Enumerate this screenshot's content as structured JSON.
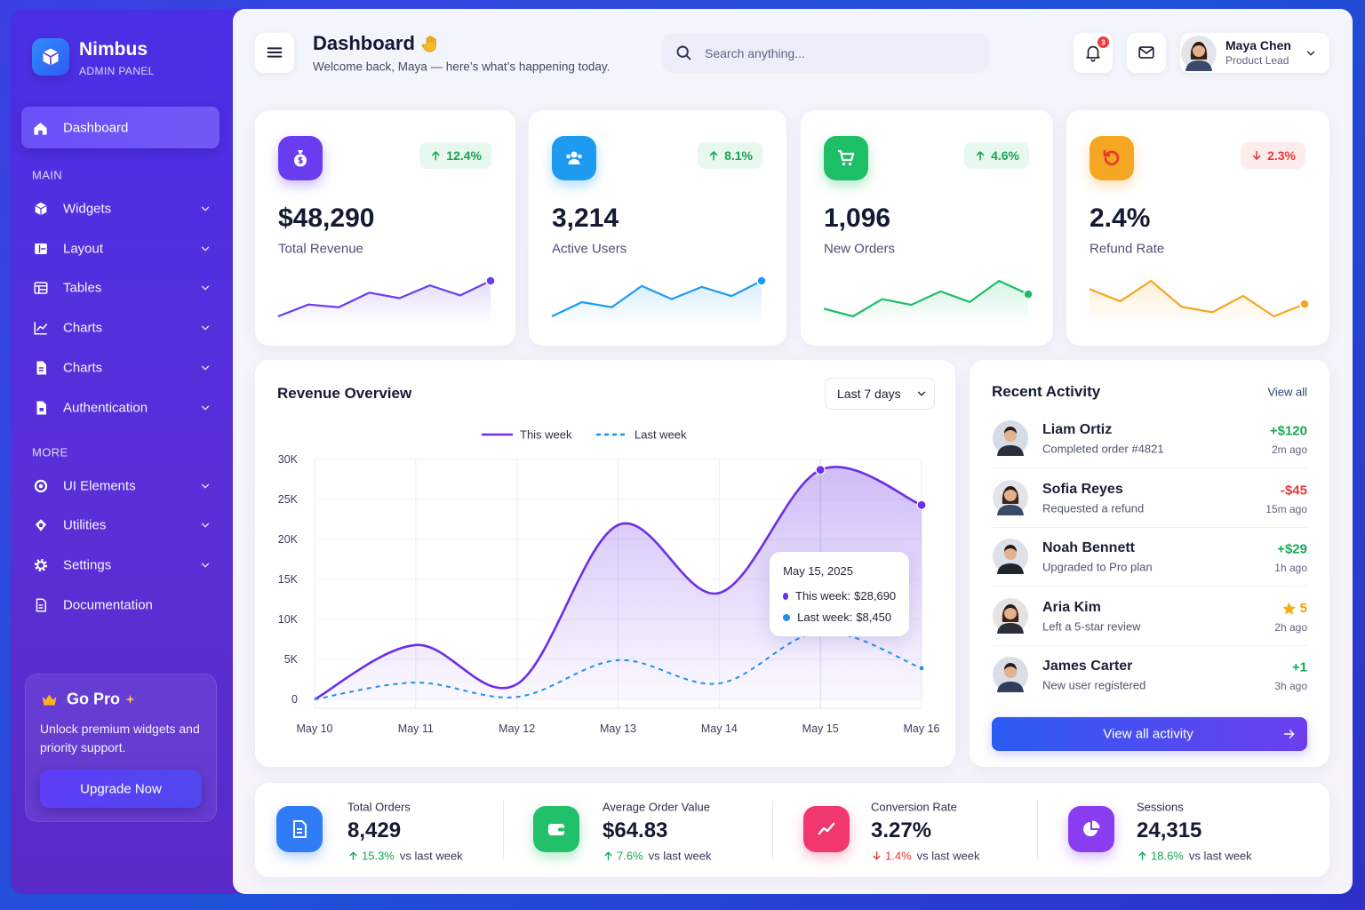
{
  "brand": {
    "name": "Nimbus",
    "tagline": "ADMIN PANEL"
  },
  "nav": {
    "active": "Dashboard",
    "sections": [
      {
        "title": "MAIN",
        "items": [
          {
            "label": "Widgets",
            "submenu": true
          },
          {
            "label": "Layout",
            "submenu": true
          },
          {
            "label": "Tables",
            "submenu": true
          },
          {
            "label": "Charts",
            "submenu": true
          },
          {
            "label": "Charts",
            "submenu": true
          },
          {
            "label": "Authentication",
            "submenu": true
          }
        ]
      },
      {
        "title": "MORE",
        "items": [
          {
            "label": "UI Elements",
            "submenu": true
          },
          {
            "label": "Utilities",
            "submenu": true
          },
          {
            "label": "Settings",
            "submenu": true
          },
          {
            "label": "Documentation",
            "submenu": false
          }
        ]
      }
    ]
  },
  "promo": {
    "title": "Go Pro",
    "text": "Unlock premium widgets and priority support.",
    "button": "Upgrade Now"
  },
  "header": {
    "title": "Dashboard",
    "subtitle": "Welcome back, Maya — here’s what’s happening today.",
    "search_placeholder": "Search anything...",
    "notifications": "3",
    "user": {
      "name": "Maya Chen",
      "role": "Product Lead"
    }
  },
  "kpis": [
    {
      "value": "$48,290",
      "label": "Total Revenue",
      "change": "12.4%",
      "direction": "up",
      "color": "#6a3cf0",
      "trend": [
        4,
        17,
        14,
        30,
        24,
        38,
        27,
        43
      ]
    },
    {
      "value": "3,214",
      "label": "Active Users",
      "change": "8.1%",
      "direction": "up",
      "color": "#1e9bf0",
      "trend": [
        4,
        18,
        13,
        34,
        21,
        33,
        24,
        39
      ]
    },
    {
      "value": "1,096",
      "label": "New Orders",
      "change": "4.6%",
      "direction": "up",
      "color": "#1cbf66",
      "trend": [
        15,
        7,
        25,
        19,
        33,
        22,
        44,
        30
      ]
    },
    {
      "value": "2.4%",
      "label": "Refund Rate",
      "change": "2.3%",
      "direction": "down",
      "color": "#f5a623",
      "trend": [
        33,
        24,
        39,
        20,
        16,
        28,
        13,
        22
      ]
    }
  ],
  "chart_data": {
    "type": "line",
    "title": "Revenue Overview",
    "range_selector": "Last 7 days",
    "categories": [
      "May 10",
      "May 11",
      "May 12",
      "May 13",
      "May 14",
      "May 15",
      "May 16"
    ],
    "series": [
      {
        "name": "This week",
        "color": "#6d2ee8",
        "style": "solid",
        "area": true,
        "values": [
          0,
          6800,
          1900,
          21800,
          13300,
          28690,
          24300
        ],
        "value_labels": [
          null,
          null,
          null,
          null,
          null,
          "$28,690",
          null
        ]
      },
      {
        "name": "Last week",
        "color": "#1e90f0",
        "style": "dashed",
        "area": false,
        "values": [
          0,
          2100,
          300,
          4900,
          2000,
          8450,
          3900
        ],
        "value_labels": [
          null,
          null,
          null,
          null,
          null,
          "$8,450",
          null
        ]
      }
    ],
    "ylim": [
      0,
      30000
    ],
    "yticks": [
      0,
      {
        "value": 5000,
        "label": "5K"
      },
      {
        "value": 10000,
        "label": "10K"
      },
      {
        "value": 15000,
        "label": "15K"
      },
      {
        "value": 20000,
        "label": "20K"
      },
      {
        "value": 25000,
        "label": "25K"
      },
      {
        "value": 30000,
        "label": "30K"
      }
    ],
    "grid": true,
    "tooltip": {
      "title": "May 15, 2025",
      "rows": [
        "This week:",
        "Last week:"
      ]
    }
  },
  "activity": {
    "title": "Recent Activity",
    "link": "View all",
    "button": "View all activity",
    "items": [
      {
        "name": "Liam Ortiz",
        "detail": "Completed order #4821",
        "amount": "+$120",
        "time": "2m ago"
      },
      {
        "name": "Sofia Reyes",
        "detail": "Requested a refund",
        "amount": "-$45",
        "time": "15m ago"
      },
      {
        "name": "Noah Bennett",
        "detail": "Upgraded to Pro plan",
        "amount": "+$29",
        "time": "1h ago"
      },
      {
        "name": "Aria Kim",
        "detail": "Left a 5-star review",
        "amount": "5",
        "time": "2h ago"
      },
      {
        "name": "James Carter",
        "detail": "New user registered",
        "amount": "+1",
        "time": "3h ago"
      }
    ]
  },
  "stats": [
    {
      "label": "Total Orders",
      "value": "8,429",
      "change": "15.3%",
      "direction": "up",
      "compare": "vs last week",
      "color": "#2f7cf6"
    },
    {
      "label": "Average Order Value",
      "value": "$64.83",
      "change": "7.6%",
      "direction": "up",
      "compare": "vs last week",
      "color": "#22c06a"
    },
    {
      "label": "Conversion Rate",
      "value": "3.27%",
      "change": "1.4%",
      "direction": "down",
      "compare": "vs last week",
      "color": "#f0386e"
    },
    {
      "label": "Sessions",
      "value": "24,315",
      "change": "18.6%",
      "direction": "up",
      "compare": "vs last week",
      "color": "#8a3cf0"
    }
  ]
}
